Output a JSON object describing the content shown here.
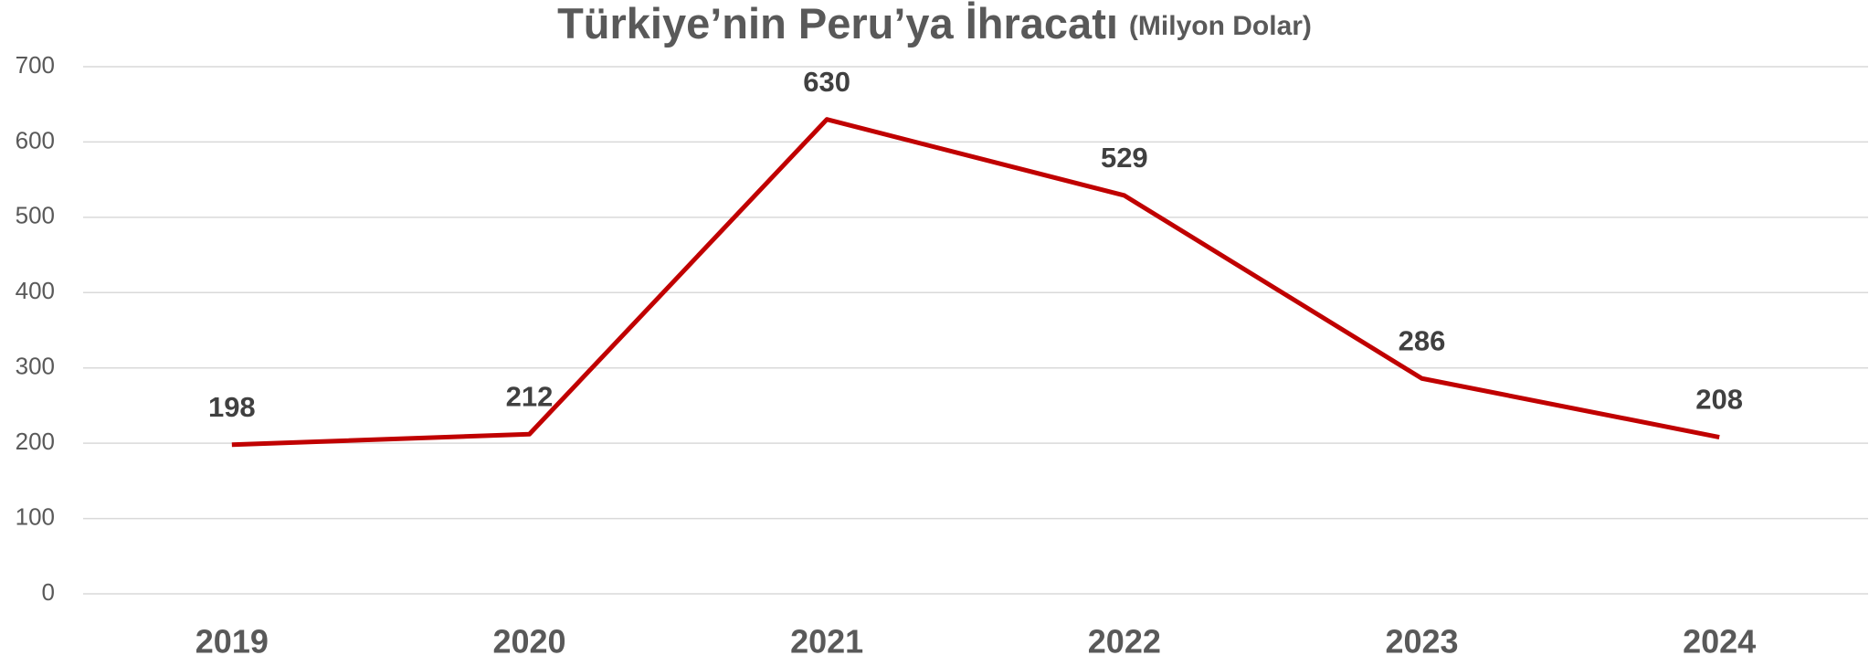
{
  "chart_data": {
    "type": "line",
    "title": "Türkiye’nin Peru’ya  İhracatı",
    "subtitle": "(Milyon Dolar)",
    "categories": [
      "2019",
      "2020",
      "2021",
      "2022",
      "2023",
      "2024"
    ],
    "series": [
      {
        "name": "İhracat",
        "color": "#c00000",
        "values": [
          198,
          212,
          630,
          529,
          286,
          208
        ]
      }
    ],
    "ylim": [
      0,
      700
    ],
    "yticks": [
      0,
      100,
      200,
      300,
      400,
      500,
      600,
      700
    ],
    "grid": true
  }
}
